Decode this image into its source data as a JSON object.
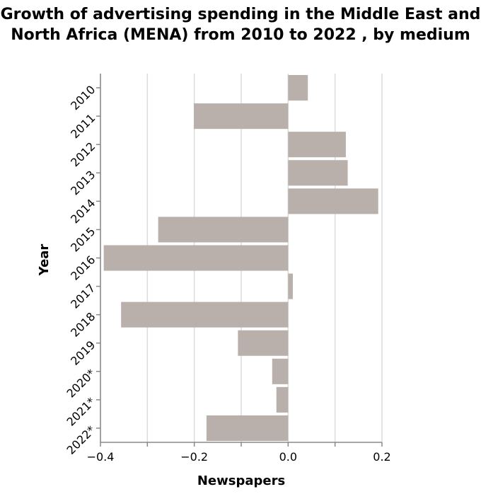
{
  "chart_data": {
    "type": "bar",
    "orientation": "horizontal",
    "title": "Growth of advertising spending in the Middle East and North Africa (MENA) from 2010 to 2022 , by medium",
    "xlabel": "Newspapers",
    "ylabel": "Year",
    "categories": [
      "2010",
      "2011",
      "2012",
      "2013",
      "2014",
      "2015",
      "2016",
      "2017",
      "2018",
      "2019",
      "2020*",
      "2021*",
      "2022*"
    ],
    "values": [
      0.042,
      -0.201,
      0.123,
      0.127,
      0.192,
      -0.277,
      -0.393,
      0.01,
      -0.356,
      -0.107,
      -0.034,
      -0.025,
      -0.174
    ],
    "xlim": [
      -0.4,
      0.2
    ],
    "xticks": [
      "-0.4",
      "-0.2",
      "0.0",
      "0.2"
    ],
    "grid": true,
    "bar_color": "#b9b0ac"
  }
}
